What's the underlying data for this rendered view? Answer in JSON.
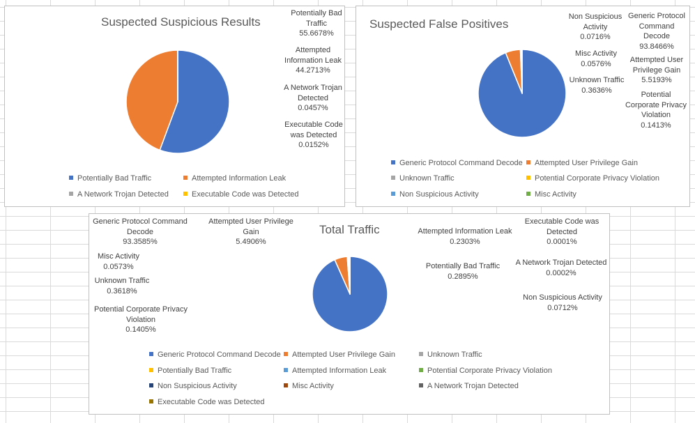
{
  "chart_data": [
    {
      "type": "pie",
      "title": "Suspected Suspicious Results",
      "series": [
        {
          "name": "Potentially Bad Traffic",
          "label_lines": [
            "Potentially Bad",
            "Traffic",
            "55.6678%"
          ],
          "value": 55.6678,
          "color": "#4472c4"
        },
        {
          "name": "Attempted Information Leak",
          "label_lines": [
            "Attempted",
            "Information Leak",
            "44.2713%"
          ],
          "value": 44.2713,
          "color": "#ed7d31"
        },
        {
          "name": "A Network Trojan Detected",
          "label_lines": [
            "A Network Trojan",
            "Detected",
            "0.0457%"
          ],
          "value": 0.0457,
          "color": "#a5a5a5"
        },
        {
          "name": "Executable Code was Detected",
          "label_lines": [
            "Executable Code",
            "was Detected",
            "0.0152%"
          ],
          "value": 0.0152,
          "color": "#ffc000"
        }
      ],
      "legend_position": "bottom"
    },
    {
      "type": "pie",
      "title": "Suspected False Positives",
      "series": [
        {
          "name": "Generic Protocol Command Decode",
          "label_lines": [
            "Generic Protocol",
            "Command",
            "Decode",
            "93.8466%"
          ],
          "value": 93.8466,
          "color": "#4472c4"
        },
        {
          "name": "Attempted User Privilege Gain",
          "label_lines": [
            "Attempted User",
            "Privilege Gain",
            "5.5193%"
          ],
          "value": 5.5193,
          "color": "#ed7d31"
        },
        {
          "name": "Unknown Traffic",
          "label_lines": [
            "Unknown Traffic",
            "0.3636%"
          ],
          "value": 0.3636,
          "color": "#a5a5a5"
        },
        {
          "name": "Potential Corporate Privacy Violation",
          "label_lines": [
            "Potential",
            "Corporate Privacy",
            "Violation",
            "0.1413%"
          ],
          "value": 0.1413,
          "color": "#ffc000"
        },
        {
          "name": "Non Suspicious Activity",
          "label_lines": [
            "Non Suspicious",
            "Activity",
            "0.0716%"
          ],
          "value": 0.0716,
          "color": "#5b9bd5"
        },
        {
          "name": "Misc Activity",
          "label_lines": [
            "Misc Activity",
            "0.0576%"
          ],
          "value": 0.0576,
          "color": "#70ad47"
        }
      ],
      "legend_position": "bottom"
    },
    {
      "type": "pie",
      "title": "Total Traffic",
      "series": [
        {
          "name": "Generic Protocol Command Decode",
          "label_lines": [
            "Generic Protocol Command",
            "Decode",
            "93.3585%"
          ],
          "value": 93.3585,
          "color": "#4472c4"
        },
        {
          "name": "Attempted User Privilege Gain",
          "label_lines": [
            "Attempted User Privilege",
            "Gain",
            "5.4906%"
          ],
          "value": 5.4906,
          "color": "#ed7d31"
        },
        {
          "name": "Unknown Traffic",
          "label_lines": [
            "Unknown Traffic",
            "0.3618%"
          ],
          "value": 0.3618,
          "color": "#a5a5a5"
        },
        {
          "name": "Potentially Bad Traffic",
          "label_lines": [
            "Potentially Bad Traffic",
            "0.2895%"
          ],
          "value": 0.2895,
          "color": "#ffc000"
        },
        {
          "name": "Attempted Information Leak",
          "label_lines": [
            "Attempted Information Leak",
            "0.2303%"
          ],
          "value": 0.2303,
          "color": "#5b9bd5"
        },
        {
          "name": "Potential Corporate Privacy Violation",
          "label_lines": [
            "Potential Corporate Privacy",
            "Violation",
            "0.1405%"
          ],
          "value": 0.1405,
          "color": "#70ad47"
        },
        {
          "name": "Non Suspicious Activity",
          "label_lines": [
            "Non Suspicious Activity",
            "0.0712%"
          ],
          "value": 0.0712,
          "color": "#264478"
        },
        {
          "name": "Misc Activity",
          "label_lines": [
            "Misc Activity",
            "0.0573%"
          ],
          "value": 0.0573,
          "color": "#9e480e"
        },
        {
          "name": "A Network Trojan Detected",
          "label_lines": [
            "A Network Trojan Detected",
            "0.0002%"
          ],
          "value": 0.0002,
          "color": "#636363"
        },
        {
          "name": "Executable Code was Detected",
          "label_lines": [
            "Executable Code was",
            "Detected",
            "0.0001%"
          ],
          "value": 0.0001,
          "color": "#997300"
        }
      ],
      "legend_position": "bottom"
    }
  ]
}
